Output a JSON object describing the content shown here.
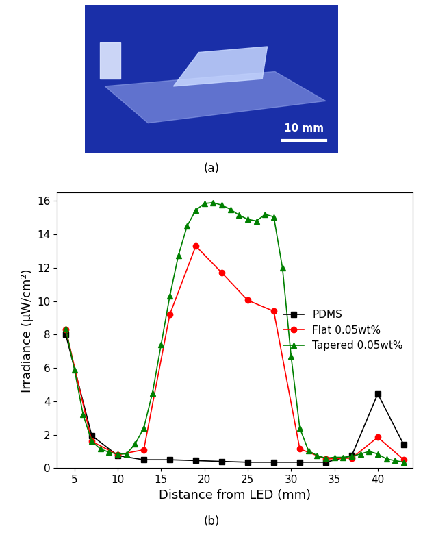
{
  "photo": {
    "caption": "(a)",
    "scale_bar": "10 mm"
  },
  "chart_data": {
    "type": "line",
    "caption": "(b)",
    "x_label": "Distance from LED (mm)",
    "y_label": "Irradiance (μW/cm²)",
    "xlim": [
      3,
      44
    ],
    "xticks": [
      5,
      10,
      15,
      20,
      25,
      30,
      35,
      40
    ],
    "ylim": [
      0,
      16.5
    ],
    "yticks": [
      0,
      2,
      4,
      6,
      8,
      10,
      12,
      14,
      16
    ],
    "legend": "center right",
    "series": [
      {
        "name": "PDMS",
        "color": "#000000",
        "marker": "square",
        "x": [
          4,
          7,
          10,
          13,
          16,
          19,
          22,
          25,
          28,
          31,
          34,
          37,
          40,
          43
        ],
        "values": [
          8.0,
          1.95,
          0.75,
          0.5,
          0.5,
          0.45,
          0.4,
          0.35,
          0.35,
          0.35,
          0.35,
          0.75,
          4.45,
          1.4
        ]
      },
      {
        "name": "Flat 0.05wt%",
        "color": "#ff0000",
        "marker": "circle",
        "x": [
          4,
          7,
          10,
          13,
          16,
          19,
          22,
          25,
          28,
          31,
          34,
          37,
          40,
          43
        ],
        "values": [
          8.3,
          1.6,
          0.8,
          1.1,
          9.2,
          13.3,
          11.7,
          10.05,
          9.4,
          1.15,
          0.55,
          0.6,
          1.85,
          0.5
        ]
      },
      {
        "name": "Tapered 0.05wt%",
        "color": "#008000",
        "marker": "triangle",
        "x": [
          4,
          5,
          6,
          7,
          8,
          9,
          10,
          11,
          12,
          13,
          14,
          15,
          16,
          17,
          18,
          19,
          20,
          21,
          22,
          23,
          24,
          25,
          26,
          27,
          28,
          29,
          30,
          31,
          32,
          33,
          34,
          35,
          36,
          37,
          38,
          39,
          40,
          41,
          42,
          43
        ],
        "values": [
          8.35,
          5.9,
          3.2,
          1.6,
          1.15,
          0.95,
          0.85,
          0.85,
          1.45,
          2.4,
          4.5,
          7.4,
          10.3,
          12.75,
          14.5,
          15.45,
          15.85,
          15.9,
          15.75,
          15.5,
          15.15,
          14.9,
          14.8,
          15.2,
          15.05,
          12.0,
          6.7,
          2.4,
          1.05,
          0.75,
          0.6,
          0.65,
          0.65,
          0.7,
          0.85,
          1.0,
          0.85,
          0.55,
          0.45,
          0.35
        ]
      }
    ]
  }
}
